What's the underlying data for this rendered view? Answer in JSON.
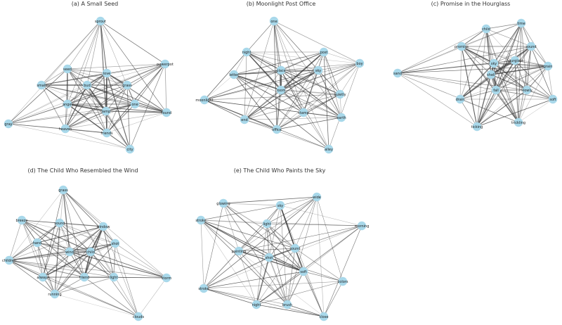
{
  "figure": {
    "colors": {
      "node": "#a8d8ea",
      "edge": "#3a3a3a",
      "label": "#222222",
      "title": "#333333"
    },
    "panels": [
      {
        "id": "a",
        "title": "(a) A Small Seed",
        "nodes": [
          {
            "label": "sprout"
          },
          {
            "label": "powerpot"
          },
          {
            "label": "seed"
          },
          {
            "label": "small"
          },
          {
            "label": "bud"
          },
          {
            "label": "love"
          },
          {
            "label": "grass"
          },
          {
            "label": "angel"
          },
          {
            "label": "lamp"
          },
          {
            "label": "one"
          },
          {
            "label": "found"
          },
          {
            "label": "gray"
          },
          {
            "label": "heaven"
          },
          {
            "label": "friends"
          },
          {
            "label": "city"
          }
        ]
      },
      {
        "id": "b",
        "title": "(b) Moonlight Post Office",
        "nodes": [
          {
            "label": "one"
          },
          {
            "label": "night"
          },
          {
            "label": "post"
          },
          {
            "label": "boy"
          },
          {
            "label": "letter"
          },
          {
            "label": "place"
          },
          {
            "label": "sky"
          },
          {
            "label": "moonlight"
          },
          {
            "label": "room"
          },
          {
            "label": "quietly"
          },
          {
            "label": "stamp"
          },
          {
            "label": "earth"
          },
          {
            "label": "end"
          },
          {
            "label": "office"
          },
          {
            "label": "alley"
          }
        ]
      },
      {
        "id": "c",
        "title": "(c) Promise in the Hourglass",
        "nodes": [
          {
            "label": "child"
          },
          {
            "label": "time"
          },
          {
            "label": "promise"
          },
          {
            "label": "sound"
          },
          {
            "label": "hourglass"
          },
          {
            "label": "sky"
          },
          {
            "label": "grain"
          },
          {
            "label": "shell"
          },
          {
            "label": "sand"
          },
          {
            "label": "fall"
          },
          {
            "label": "slowly"
          },
          {
            "label": "drain"
          },
          {
            "label": "soft"
          },
          {
            "label": "ticking"
          },
          {
            "label": "trickling"
          }
        ]
      },
      {
        "id": "d",
        "title": "(d) The Child Who Resembled the Wind",
        "nodes": [
          {
            "label": "grass"
          },
          {
            "label": "breeze"
          },
          {
            "label": "sound"
          },
          {
            "label": "window"
          },
          {
            "label": "hand"
          },
          {
            "label": "wind"
          },
          {
            "label": "child"
          },
          {
            "label": "shot"
          },
          {
            "label": "children"
          },
          {
            "label": "always"
          },
          {
            "label": "friend"
          },
          {
            "label": "light"
          },
          {
            "label": "storm"
          },
          {
            "label": "running"
          },
          {
            "label": "clouds"
          }
        ]
      },
      {
        "id": "e",
        "title": "(e) The Child Who Paints the Sky",
        "nodes": [
          {
            "label": "wide"
          },
          {
            "label": "glowing"
          },
          {
            "label": "sky"
          },
          {
            "label": "light"
          },
          {
            "label": "stroke"
          },
          {
            "label": "morning"
          },
          {
            "label": "painting"
          },
          {
            "label": "sound"
          },
          {
            "label": "shot"
          },
          {
            "label": "soft"
          },
          {
            "label": "colors"
          },
          {
            "label": "stroke"
          },
          {
            "label": "night"
          },
          {
            "label": "brush"
          },
          {
            "label": "close"
          }
        ]
      }
    ]
  }
}
